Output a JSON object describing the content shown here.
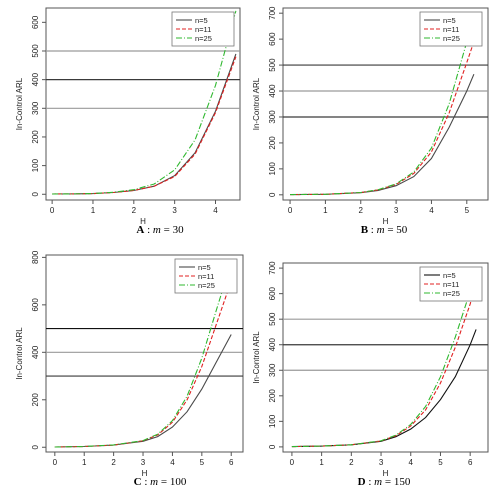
{
  "chart_data": [
    {
      "type": "line",
      "caption": {
        "letter": "A",
        "sep": " : ",
        "var": "m",
        "eq": " = ",
        "value": "30"
      },
      "xlabel": "H",
      "ylabel": "In-Control ARL",
      "xlim": [
        -0.15,
        4.6
      ],
      "ylim": [
        -20,
        650
      ],
      "xticks": [
        0,
        1,
        2,
        3,
        4
      ],
      "yticks": [
        0,
        100,
        200,
        300,
        400,
        500,
        600
      ],
      "hlines": [
        {
          "y": 300,
          "color": "#9a9a9a"
        },
        {
          "y": 400,
          "color": "#3a3a3a"
        },
        {
          "y": 500,
          "color": "#9a9a9a"
        }
      ],
      "legend": {
        "position": "top-right"
      },
      "series": [
        {
          "name": "n=5",
          "color": "#4a4a4a",
          "dash": "",
          "x": [
            0,
            0.5,
            1,
            1.5,
            2,
            2.5,
            3,
            3.5,
            4,
            4.5
          ],
          "y": [
            1,
            1.3,
            2.5,
            6,
            13,
            28,
            65,
            145,
            290,
            490
          ]
        },
        {
          "name": "n=11",
          "color": "#e02020",
          "dash": "4,2",
          "x": [
            0,
            0.5,
            1,
            1.5,
            2,
            2.5,
            3,
            3.5,
            4,
            4.5
          ],
          "y": [
            1,
            1.3,
            2.5,
            6,
            13,
            28,
            62,
            140,
            285,
            480
          ]
        },
        {
          "name": "n=25",
          "color": "#2fb82f",
          "dash": "6,2,1,2",
          "x": [
            0,
            0.5,
            1,
            1.5,
            2,
            2.5,
            3,
            3.5,
            4,
            4.5
          ],
          "y": [
            1,
            1.3,
            2.7,
            7,
            16,
            36,
            85,
            190,
            380,
            640
          ]
        }
      ]
    },
    {
      "type": "line",
      "caption": {
        "letter": "B",
        "sep": " : ",
        "var": "m",
        "eq": " = ",
        "value": "50"
      },
      "xlabel": "H",
      "ylabel": "In-Control ARL",
      "xlim": [
        -0.2,
        5.6
      ],
      "ylim": [
        -20,
        720
      ],
      "xticks": [
        0,
        1,
        2,
        3,
        4,
        5
      ],
      "yticks": [
        0,
        100,
        200,
        300,
        400,
        500,
        600,
        700
      ],
      "hlines": [
        {
          "y": 300,
          "color": "#3a3a3a"
        },
        {
          "y": 400,
          "color": "#9a9a9a"
        },
        {
          "y": 500,
          "color": "#3a3a3a"
        }
      ],
      "legend": {
        "position": "top-right"
      },
      "series": [
        {
          "name": "n=5",
          "color": "#4a4a4a",
          "dash": "",
          "x": [
            0,
            1,
            2,
            2.5,
            3,
            3.5,
            4,
            4.5,
            5,
            5.2
          ],
          "y": [
            1,
            2,
            8,
            17,
            35,
            70,
            140,
            260,
            400,
            465
          ]
        },
        {
          "name": "n=11",
          "color": "#e02020",
          "dash": "4,2",
          "x": [
            0,
            1,
            2,
            2.5,
            3,
            3.5,
            4,
            4.5,
            5,
            5.2
          ],
          "y": [
            1,
            2,
            9,
            19,
            40,
            82,
            165,
            315,
            510,
            590
          ]
        },
        {
          "name": "n=25",
          "color": "#2fb82f",
          "dash": "6,2,1,2",
          "x": [
            0,
            1,
            2,
            2.5,
            3,
            3.5,
            4,
            4.5,
            5,
            5.2
          ],
          "y": [
            1,
            2,
            9,
            20,
            42,
            88,
            180,
            350,
            590,
            700
          ]
        }
      ]
    },
    {
      "type": "line",
      "caption": {
        "letter": "C",
        "sep": " : ",
        "var": "m",
        "eq": " = ",
        "value": "100"
      },
      "xlabel": "H",
      "ylabel": "In-Control ARL",
      "xlim": [
        -0.3,
        6.4
      ],
      "ylim": [
        -20,
        810
      ],
      "xticks": [
        0,
        1,
        2,
        3,
        4,
        5,
        6
      ],
      "yticks": [
        0,
        200,
        400,
        600,
        800
      ],
      "hlines": [
        {
          "y": 300,
          "color": "#3a3a3a"
        },
        {
          "y": 400,
          "color": "#9a9a9a"
        },
        {
          "y": 500,
          "color": "#111111"
        }
      ],
      "legend": {
        "position": "top-right"
      },
      "series": [
        {
          "name": "n=5",
          "color": "#4a4a4a",
          "dash": "",
          "x": [
            0,
            1,
            2,
            3,
            3.5,
            4,
            4.5,
            5,
            5.5,
            6
          ],
          "y": [
            1,
            3,
            9,
            25,
            45,
            85,
            150,
            245,
            360,
            475
          ]
        },
        {
          "name": "n=11",
          "color": "#e02020",
          "dash": "4,2",
          "x": [
            0,
            1,
            2,
            3,
            3.5,
            4,
            4.5,
            5,
            5.5,
            6
          ],
          "y": [
            1,
            3,
            9,
            27,
            52,
            105,
            200,
            340,
            520,
            700
          ]
        },
        {
          "name": "n=25",
          "color": "#2fb82f",
          "dash": "6,2,1,2",
          "x": [
            0,
            1,
            2,
            3,
            3.5,
            4,
            4.5,
            5,
            5.5,
            6
          ],
          "y": [
            1,
            3,
            10,
            28,
            55,
            112,
            215,
            375,
            580,
            780
          ]
        }
      ]
    },
    {
      "type": "line",
      "caption": {
        "letter": "D",
        "sep": " : ",
        "var": "m",
        "eq": " = ",
        "value": "150"
      },
      "xlabel": "H",
      "ylabel": "In-Control ARL",
      "xlim": [
        -0.3,
        6.6
      ],
      "ylim": [
        -20,
        720
      ],
      "xticks": [
        0,
        1,
        2,
        3,
        4,
        5,
        6
      ],
      "yticks": [
        0,
        100,
        200,
        300,
        400,
        500,
        600,
        700
      ],
      "hlines": [
        {
          "y": 300,
          "color": "#9a9a9a"
        },
        {
          "y": 400,
          "color": "#3a3a3a"
        },
        {
          "y": 500,
          "color": "#9a9a9a"
        }
      ],
      "legend": {
        "position": "top-right"
      },
      "series": [
        {
          "name": "n=5",
          "color": "#111111",
          "dash": "",
          "x": [
            0,
            1,
            2,
            3,
            3.5,
            4,
            4.5,
            5,
            5.5,
            6,
            6.2
          ],
          "y": [
            1,
            3,
            8,
            22,
            40,
            70,
            115,
            185,
            275,
            400,
            460
          ]
        },
        {
          "name": "n=11",
          "color": "#e02020",
          "dash": "4,2",
          "x": [
            0,
            1,
            2,
            3,
            3.5,
            4,
            4.5,
            5,
            5.5,
            6,
            6.2
          ],
          "y": [
            1,
            3,
            8,
            23,
            44,
            82,
            145,
            250,
            390,
            560,
            640
          ]
        },
        {
          "name": "n=25",
          "color": "#2fb82f",
          "dash": "6,2,1,2",
          "x": [
            0,
            1,
            2,
            3,
            3.5,
            4,
            4.5,
            5,
            5.5,
            6,
            6.2
          ],
          "y": [
            1,
            3,
            8,
            24,
            46,
            88,
            158,
            275,
            430,
            610,
            700
          ]
        }
      ]
    }
  ]
}
